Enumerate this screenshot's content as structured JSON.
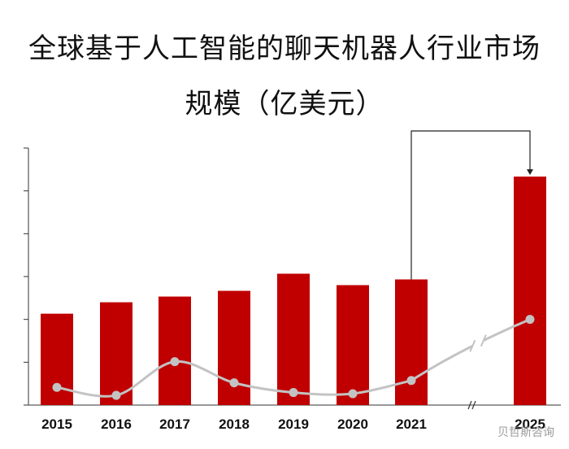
{
  "title_line1": "全球基于人工智能的聊天机器人行业市场",
  "title_line2": "规模（亿美元）",
  "watermark": "贝哲斯咨询",
  "colors": {
    "bar": "#c00000",
    "line": "#c3c3c3",
    "axis": "#333333",
    "arrow": "#222222"
  },
  "chart_data": {
    "type": "bar",
    "title": "全球基于人工智能的聊天机器人行业市场规模（亿美元）",
    "categories": [
      "2015",
      "2016",
      "2017",
      "2018",
      "2019",
      "2020",
      "2021",
      "2025"
    ],
    "axis_break_between": [
      "2021",
      "2025"
    ],
    "y_axis_tick_labels_shown": false,
    "series": [
      {
        "values": [
          32,
          36,
          38,
          40,
          46,
          42,
          44,
          80
        ]
      },
      {
        "type": "line",
        "smooth": true,
        "values": [
          6.2,
          3.4,
          15.2,
          7.8,
          4.4,
          4.0,
          8.6,
          30.0
        ]
      }
    ],
    "ylim": [
      0,
      90
    ],
    "y_ticks": [
      0,
      15,
      30,
      45,
      60,
      75,
      90
    ],
    "annotations": [
      "arrow from 2021 bar to 2025 bar"
    ]
  }
}
